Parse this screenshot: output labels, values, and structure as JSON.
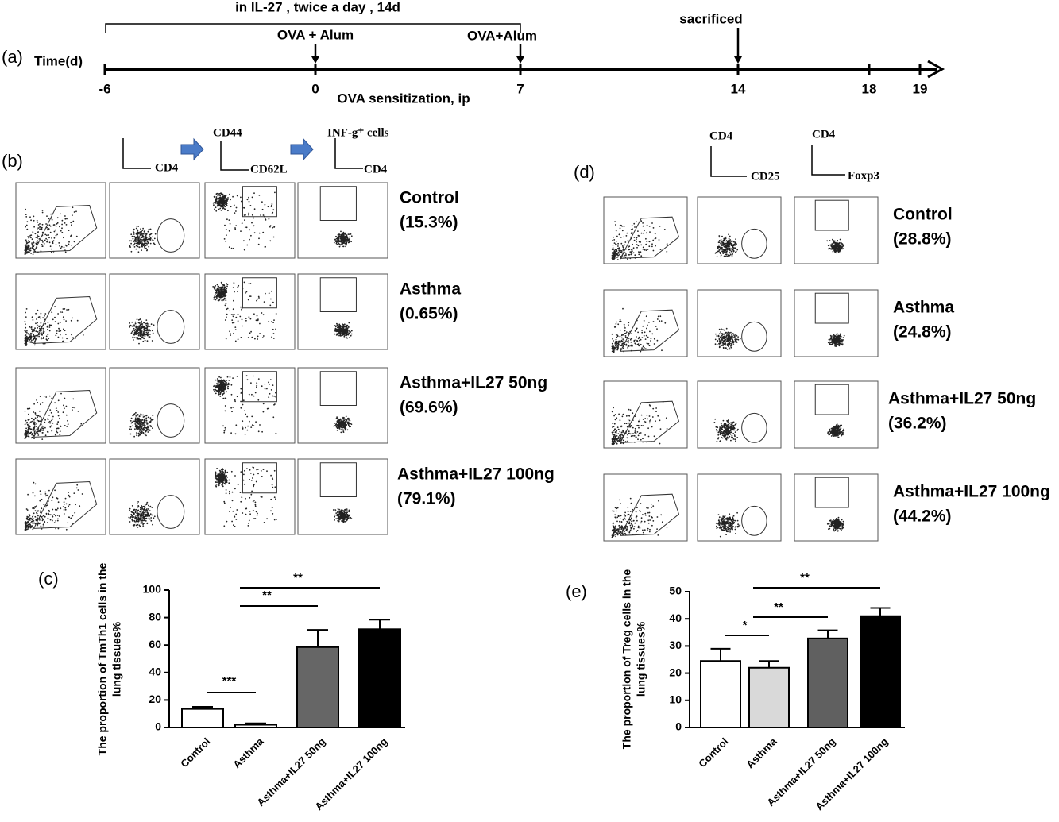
{
  "timeline": {
    "panel": "(a)",
    "axis_label": "Time(d)",
    "bracket_label": "in IL-27 , twice a day , 14d",
    "events": [
      "OVA + Alum",
      "OVA+Alum",
      "sacrificed"
    ],
    "ticks": [
      -6,
      0,
      7,
      14,
      18,
      19
    ],
    "caption": "OVA sensitization, ip"
  },
  "panel_b": {
    "label": "(b)",
    "gates": [
      "CD4",
      "CD44",
      "CD62L",
      "INF-g⁺ cells",
      "CD4"
    ],
    "groups": [
      {
        "name": "Control",
        "percent": "(15.3%)"
      },
      {
        "name": "Asthma",
        "percent": "(0.65%)"
      },
      {
        "name": "Asthma+IL27 50ng",
        "percent": "(69.6%)"
      },
      {
        "name": "Asthma+IL27 100ng",
        "percent": "(79.1%)"
      }
    ]
  },
  "panel_d": {
    "label": "(d)",
    "gates": [
      "CD4",
      "CD25",
      "CD4",
      "Foxp3"
    ],
    "groups": [
      {
        "name": "Control",
        "percent": "(28.8%)"
      },
      {
        "name": "Asthma",
        "percent": "(24.8%)"
      },
      {
        "name": "Asthma+IL27 50ng",
        "percent": "(36.2%)"
      },
      {
        "name": "Asthma+IL27 100ng",
        "percent": "(44.2%)"
      }
    ]
  },
  "chart_data": [
    {
      "type": "bar",
      "panel": "(c)",
      "ylabel": [
        "The proportion of TmTh1 cells in the",
        "lung tissues%"
      ],
      "categories": [
        "Control",
        "Asthma",
        "Asthma+IL27 50ng",
        "Asthma+IL27 100ng"
      ],
      "values": [
        13.5,
        2,
        58.5,
        71.5
      ],
      "errors": [
        1.5,
        1,
        12.5,
        7
      ],
      "colors": [
        "#ffffff",
        "#ffffff",
        "#666666",
        "#000000"
      ],
      "ylim": [
        0,
        100
      ],
      "yticks": [
        0,
        20,
        40,
        60,
        80,
        100
      ],
      "annotations": [
        "***",
        "**",
        "**"
      ]
    },
    {
      "type": "bar",
      "panel": "(e)",
      "ylabel": [
        "The proportion of Treg cells in the",
        "lung tissues%"
      ],
      "categories": [
        "Control",
        "Asthma",
        "Asthma+IL27 50ng",
        "Asthma+IL27 100ng"
      ],
      "values": [
        24.5,
        22,
        32.8,
        41
      ],
      "errors": [
        4.5,
        2.5,
        3,
        3
      ],
      "colors": [
        "#ffffff",
        "#d9d9d9",
        "#606060",
        "#000000"
      ],
      "ylim": [
        0,
        50
      ],
      "yticks": [
        0,
        10,
        20,
        30,
        40,
        50
      ],
      "annotations": [
        "*",
        "**",
        "**"
      ]
    }
  ]
}
